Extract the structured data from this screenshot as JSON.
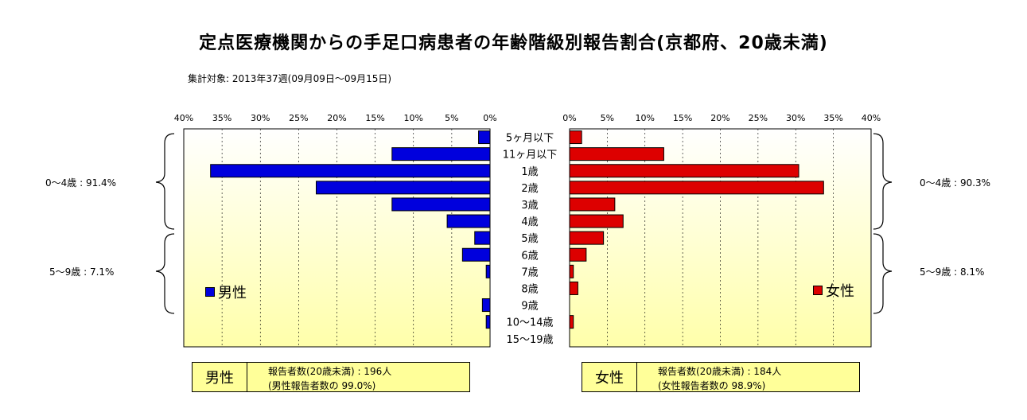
{
  "title": "定点医療機関からの手足口病患者の年齢階級別報告割合(京都府、20歳未満)",
  "subtitle": "集計対象: 2013年37週(09月09日～09月15日)",
  "colors": {
    "male": "#0000dd",
    "female": "#dd0000",
    "plot_bg_top": "#ffffff",
    "plot_bg_bottom": "#ffffaa",
    "box_bg": "#ffff99"
  },
  "chart_data": {
    "type": "bar",
    "orientation": "horizontal",
    "categories": [
      "5ヶ月以下",
      "11ヶ月以下",
      "1歳",
      "2歳",
      "3歳",
      "4歳",
      "5歳",
      "6歳",
      "7歳",
      "8歳",
      "9歳",
      "10～14歳",
      "15～19歳"
    ],
    "series": [
      {
        "name": "男性",
        "values": [
          1.5,
          12.8,
          36.5,
          22.7,
          12.8,
          5.6,
          2.0,
          3.6,
          0.5,
          0.0,
          1.0,
          0.5,
          0.0
        ]
      },
      {
        "name": "女性",
        "values": [
          1.6,
          12.5,
          30.4,
          33.7,
          6.0,
          7.1,
          4.5,
          2.2,
          0.5,
          1.1,
          0.0,
          0.5,
          0.0
        ]
      }
    ],
    "xlim": [
      0,
      40
    ],
    "tick_values": [
      40,
      35,
      30,
      25,
      20,
      15,
      10,
      5,
      0
    ],
    "tick_labels_left": [
      "40%",
      "35%",
      "30%",
      "25%",
      "20%",
      "15%",
      "10%",
      "5%",
      "0%"
    ],
    "tick_labels_right": [
      "0%",
      "5%",
      "10%",
      "15%",
      "20%",
      "25%",
      "30%",
      "35%",
      "40%"
    ],
    "grid": true
  },
  "brackets": {
    "male_0_4": "0～4歳 : 91.4%",
    "male_5_9": "5～9歳 : 7.1%",
    "female_0_4": "0～4歳 : 90.3%",
    "female_5_9": "5～9歳 : 8.1%"
  },
  "legend": {
    "male": "男性",
    "female": "女性"
  },
  "summary": {
    "male": {
      "label": "男性",
      "line1": "報告者数(20歳未満) : 196人",
      "line2": "(男性報告者数の 99.0%)"
    },
    "female": {
      "label": "女性",
      "line1": "報告者数(20歳未満) : 184人",
      "line2": "(女性報告者数の 98.9%)"
    }
  }
}
